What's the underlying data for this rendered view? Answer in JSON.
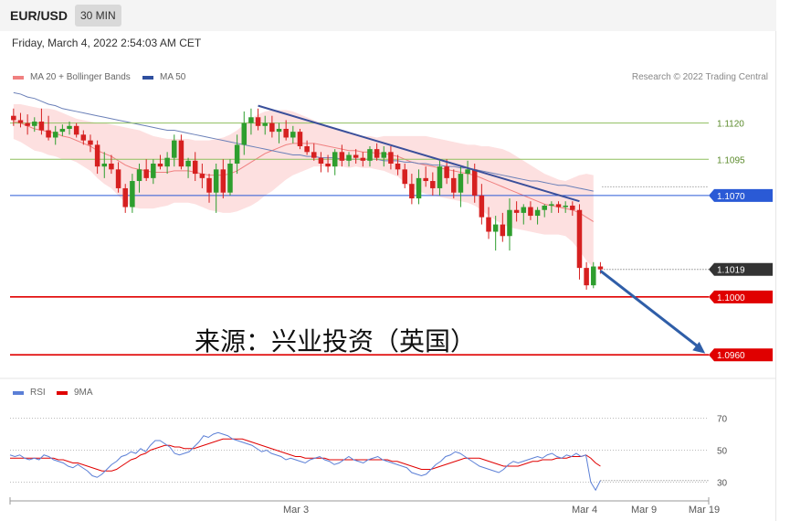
{
  "header": {
    "symbol": "EUR/USD",
    "timeframe": "30 MIN"
  },
  "timestamp": "Friday, March 4, 2022 2:54:03 AM CET",
  "credit": "Research © 2022 Trading Central",
  "watermark": "来源：兴业投资（英国）",
  "legend": {
    "price": [
      {
        "label": "MA 20 + Bollinger Bands",
        "color": "#f08080"
      },
      {
        "label": "MA 50",
        "color": "#2f4f9f"
      }
    ],
    "indicator": [
      {
        "label": "RSI",
        "color": "#5b7fd6"
      },
      {
        "label": "9MA",
        "color": "#e00000"
      }
    ]
  },
  "colors": {
    "up": "#2e9e2e",
    "down": "#d62020",
    "band": "#fde0e0",
    "ma20": "#f08080",
    "ma50": "#6b80b8",
    "trend": "#3a4f9a",
    "arrow": "#2f5ea8",
    "support": "#e00000",
    "resistance": "#8fbf5f",
    "pivot": "#2a5ad6"
  },
  "chart_data": [
    {
      "type": "candlestick",
      "y_range": [
        1.0945,
        1.1145
      ],
      "x_ticks": [
        "Mar 3",
        "Mar 4",
        "Mar 9",
        "Mar 19"
      ],
      "price_levels": [
        {
          "value": 1.112,
          "label": "1.1120",
          "kind": "resistance"
        },
        {
          "value": 1.1095,
          "label": "1.1095",
          "kind": "resistance"
        },
        {
          "value": 1.107,
          "label": "1.1070",
          "kind": "pivot"
        },
        {
          "value": 1.1019,
          "label": "1.1019",
          "kind": "last"
        },
        {
          "value": 1.1,
          "label": "1.1000",
          "kind": "support"
        },
        {
          "value": 1.096,
          "label": "1.0960",
          "kind": "support"
        }
      ],
      "ohlc": [
        [
          1.1125,
          1.113,
          1.1118,
          1.1122
        ],
        [
          1.1122,
          1.1127,
          1.1117,
          1.112
        ],
        [
          1.112,
          1.1126,
          1.1112,
          1.1118
        ],
        [
          1.1118,
          1.1124,
          1.1114,
          1.1121
        ],
        [
          1.1121,
          1.113,
          1.1112,
          1.1115
        ],
        [
          1.1115,
          1.1125,
          1.1108,
          1.111
        ],
        [
          1.111,
          1.1118,
          1.1105,
          1.1114
        ],
        [
          1.1114,
          1.1119,
          1.1111,
          1.1116
        ],
        [
          1.1116,
          1.1121,
          1.1112,
          1.1118
        ],
        [
          1.1118,
          1.112,
          1.111,
          1.1112
        ],
        [
          1.1112,
          1.1115,
          1.1105,
          1.1108
        ],
        [
          1.1108,
          1.1112,
          1.11,
          1.1105
        ],
        [
          1.1105,
          1.1108,
          1.1085,
          1.109
        ],
        [
          1.109,
          1.11,
          1.1082,
          1.1092
        ],
        [
          1.1092,
          1.1098,
          1.1085,
          1.1088
        ],
        [
          1.1088,
          1.1093,
          1.1072,
          1.1075
        ],
        [
          1.1075,
          1.1078,
          1.1058,
          1.1062
        ],
        [
          1.1062,
          1.1085,
          1.1058,
          1.108
        ],
        [
          1.108,
          1.1092,
          1.1072,
          1.1088
        ],
        [
          1.1088,
          1.1095,
          1.108,
          1.1082
        ],
        [
          1.1082,
          1.1095,
          1.1078,
          1.1092
        ],
        [
          1.1092,
          1.1098,
          1.1088,
          1.109
        ],
        [
          1.109,
          1.11,
          1.1085,
          1.1096
        ],
        [
          1.1096,
          1.1112,
          1.109,
          1.1108
        ],
        [
          1.1108,
          1.1112,
          1.1088,
          1.109
        ],
        [
          1.109,
          1.1096,
          1.1082,
          1.1094
        ],
        [
          1.1094,
          1.11,
          1.108,
          1.1085
        ],
        [
          1.1085,
          1.1092,
          1.1075,
          1.1082
        ],
        [
          1.1082,
          1.1085,
          1.1065,
          1.1072
        ],
        [
          1.1072,
          1.1092,
          1.1058,
          1.1088
        ],
        [
          1.1088,
          1.1095,
          1.1068,
          1.1072
        ],
        [
          1.1072,
          1.1095,
          1.107,
          1.1092
        ],
        [
          1.1092,
          1.1112,
          1.1085,
          1.1105
        ],
        [
          1.1105,
          1.1128,
          1.1098,
          1.112
        ],
        [
          1.112,
          1.113,
          1.1112,
          1.1124
        ],
        [
          1.1124,
          1.113,
          1.1115,
          1.1118
        ],
        [
          1.1118,
          1.1125,
          1.1112,
          1.112
        ],
        [
          1.112,
          1.1125,
          1.111,
          1.1114
        ],
        [
          1.1114,
          1.112,
          1.1106,
          1.1116
        ],
        [
          1.1116,
          1.1122,
          1.1108,
          1.111
        ],
        [
          1.111,
          1.1118,
          1.1106,
          1.1114
        ],
        [
          1.1114,
          1.1116,
          1.1102,
          1.1104
        ],
        [
          1.1104,
          1.1108,
          1.1098,
          1.11
        ],
        [
          1.11,
          1.1106,
          1.1094,
          1.1096
        ],
        [
          1.1096,
          1.11,
          1.1086,
          1.1092
        ],
        [
          1.1092,
          1.1098,
          1.1086,
          1.109
        ],
        [
          1.109,
          1.1102,
          1.1084,
          1.11
        ],
        [
          1.11,
          1.1105,
          1.109,
          1.1094
        ],
        [
          1.1094,
          1.11,
          1.109,
          1.1098
        ],
        [
          1.1098,
          1.1102,
          1.1092,
          1.1096
        ],
        [
          1.1096,
          1.11,
          1.109,
          1.1094
        ],
        [
          1.1094,
          1.1104,
          1.109,
          1.1102
        ],
        [
          1.1102,
          1.1106,
          1.1094,
          1.1096
        ],
        [
          1.1096,
          1.1104,
          1.109,
          1.11
        ],
        [
          1.11,
          1.1104,
          1.1088,
          1.1092
        ],
        [
          1.1092,
          1.1098,
          1.1084,
          1.1088
        ],
        [
          1.1088,
          1.1092,
          1.1075,
          1.1078
        ],
        [
          1.1078,
          1.1085,
          1.1064,
          1.1068
        ],
        [
          1.1068,
          1.1088,
          1.1064,
          1.1082
        ],
        [
          1.1082,
          1.109,
          1.1076,
          1.108
        ],
        [
          1.108,
          1.1086,
          1.107,
          1.1075
        ],
        [
          1.1075,
          1.1094,
          1.107,
          1.109
        ],
        [
          1.109,
          1.1095,
          1.1078,
          1.1082
        ],
        [
          1.1082,
          1.1088,
          1.1068,
          1.1072
        ],
        [
          1.1072,
          1.109,
          1.1062,
          1.1085
        ],
        [
          1.1085,
          1.1094,
          1.1078,
          1.1088
        ],
        [
          1.1088,
          1.1092,
          1.1065,
          1.107
        ],
        [
          1.107,
          1.1078,
          1.105,
          1.1055
        ],
        [
          1.1055,
          1.1062,
          1.104,
          1.1045
        ],
        [
          1.1045,
          1.1056,
          1.1032,
          1.105
        ],
        [
          1.105,
          1.1058,
          1.1038,
          1.1042
        ],
        [
          1.1042,
          1.1068,
          1.1032,
          1.106
        ],
        [
          1.106,
          1.1066,
          1.1052,
          1.1058
        ],
        [
          1.1058,
          1.1064,
          1.105,
          1.1062
        ],
        [
          1.1062,
          1.1066,
          1.1053,
          1.1056
        ],
        [
          1.1056,
          1.1062,
          1.105,
          1.106
        ],
        [
          1.106,
          1.1064,
          1.1055,
          1.1063
        ],
        [
          1.1063,
          1.1066,
          1.1058,
          1.1064
        ],
        [
          1.1064,
          1.1066,
          1.1058,
          1.1062
        ],
        [
          1.1062,
          1.1066,
          1.1058,
          1.1063
        ],
        [
          1.1063,
          1.1066,
          1.1056,
          1.106
        ],
        [
          1.106,
          1.1064,
          1.1012,
          1.102
        ],
        [
          1.102,
          1.1024,
          1.1005,
          1.1008
        ],
        [
          1.1008,
          1.1024,
          1.1006,
          1.1021
        ],
        [
          1.1021,
          1.1024,
          1.1016,
          1.1019
        ]
      ],
      "ma20": [
        1.1121,
        1.112,
        1.1118,
        1.1116,
        1.1115,
        1.1114,
        1.1113,
        1.1111,
        1.111,
        1.1108,
        1.1106,
        1.1104,
        1.1101,
        1.1099,
        1.1097,
        1.1094,
        1.1091,
        1.1089,
        1.1088,
        1.1087,
        1.1086,
        1.1086,
        1.1086,
        1.1087,
        1.1087,
        1.1087,
        1.1086,
        1.1085,
        1.1084,
        1.1084,
        1.1084,
        1.1085,
        1.1087,
        1.109,
        1.1093,
        1.1096,
        1.1099,
        1.1101,
        1.1103,
        1.1105,
        1.1106,
        1.1106,
        1.1106,
        1.1106,
        1.1105,
        1.1104,
        1.1103,
        1.1102,
        1.1101,
        1.1101,
        1.11,
        1.11,
        1.1099,
        1.1099,
        1.1098,
        1.1097,
        1.1095,
        1.1093,
        1.1092,
        1.1091,
        1.109,
        1.1089,
        1.1088,
        1.1087,
        1.1086,
        1.1085,
        1.1084,
        1.1082,
        1.108,
        1.1078,
        1.1076,
        1.1074,
        1.1072,
        1.107,
        1.1068,
        1.1066,
        1.1064,
        1.1063,
        1.1062,
        1.1061,
        1.106,
        1.1058,
        1.1055,
        1.1052
      ],
      "bb_width": [
        0.0012,
        0.0013,
        0.0014,
        0.0015,
        0.0015,
        0.0016,
        0.0016,
        0.0016,
        0.0015,
        0.0015,
        0.0016,
        0.0017,
        0.0019,
        0.0021,
        0.0022,
        0.0024,
        0.0026,
        0.0027,
        0.0027,
        0.0026,
        0.0025,
        0.0024,
        0.0023,
        0.0022,
        0.0022,
        0.0022,
        0.0022,
        0.0023,
        0.0024,
        0.0025,
        0.0026,
        0.0027,
        0.0028,
        0.0029,
        0.003,
        0.003,
        0.0029,
        0.0028,
        0.0026,
        0.0024,
        0.0022,
        0.002,
        0.0018,
        0.0016,
        0.0015,
        0.0014,
        0.0013,
        0.0012,
        0.0012,
        0.0011,
        0.0011,
        0.0011,
        0.0011,
        0.0012,
        0.0013,
        0.0014,
        0.0016,
        0.0018,
        0.0019,
        0.002,
        0.002,
        0.002,
        0.002,
        0.002,
        0.002,
        0.002,
        0.0021,
        0.0022,
        0.0024,
        0.0025,
        0.0026,
        0.0026,
        0.0025,
        0.0024,
        0.0023,
        0.0022,
        0.0021,
        0.002,
        0.0019,
        0.0019,
        0.0022,
        0.0026,
        0.003,
        0.0032
      ],
      "ma50": [
        1.1141,
        1.114,
        1.1138,
        1.1137,
        1.1135,
        1.1133,
        1.1132,
        1.113,
        1.1129,
        1.1128,
        1.1127,
        1.1126,
        1.1125,
        1.1124,
        1.1123,
        1.1122,
        1.1121,
        1.112,
        1.1119,
        1.1118,
        1.1117,
        1.1116,
        1.1115,
        1.1115,
        1.1114,
        1.1113,
        1.1112,
        1.1111,
        1.111,
        1.1109,
        1.1108,
        1.1107,
        1.1106,
        1.1105,
        1.1104,
        1.1103,
        1.1102,
        1.1101,
        1.11,
        1.1099,
        1.1098,
        1.1098,
        1.1097,
        1.1097,
        1.1096,
        1.1096,
        1.1096,
        1.1095,
        1.1095,
        1.1095,
        1.1095,
        1.1095,
        1.1095,
        1.1094,
        1.1094,
        1.1094,
        1.1093,
        1.1093,
        1.1092,
        1.1092,
        1.1091,
        1.1091,
        1.109,
        1.109,
        1.1089,
        1.1089,
        1.1088,
        1.1087,
        1.1086,
        1.1085,
        1.1084,
        1.1083,
        1.1082,
        1.1081,
        1.108,
        1.108,
        1.1079,
        1.1078,
        1.1077,
        1.1077,
        1.1076,
        1.1075,
        1.1074,
        1.1073
      ],
      "trendline": {
        "from": {
          "bar": 35,
          "value": 1.1132
        },
        "to": {
          "bar": 81,
          "value": 1.1066
        }
      },
      "forecast_arrow": {
        "from": {
          "bar": 84,
          "value": 1.1018
        },
        "to": {
          "bar": 99,
          "value": 1.0961
        }
      }
    },
    {
      "type": "line",
      "y_range": [
        20,
        80
      ],
      "y_ticks": [
        70,
        50,
        30
      ],
      "series": [
        {
          "name": "RSI",
          "values": [
            47,
            46,
            47,
            45,
            44,
            45,
            44,
            47,
            46,
            44,
            43,
            42,
            40,
            39,
            41,
            39,
            37,
            34,
            33,
            35,
            38,
            41,
            43,
            46,
            47,
            49,
            48,
            51,
            49,
            53,
            56,
            56,
            54,
            52,
            48,
            47,
            48,
            49,
            52,
            55,
            59,
            58,
            60,
            61,
            60,
            59,
            57,
            56,
            55,
            54,
            53,
            51,
            49,
            50,
            48,
            47,
            46,
            44,
            45,
            44,
            43,
            42,
            44,
            45,
            46,
            44,
            43,
            41,
            42,
            44,
            46,
            44,
            43,
            42,
            44,
            45,
            46,
            44,
            43,
            42,
            41,
            40,
            39,
            36,
            35,
            34,
            35,
            38,
            41,
            43,
            46,
            47,
            49,
            48,
            46,
            44,
            42,
            40,
            39,
            38,
            37,
            36,
            38,
            41,
            43,
            42,
            43,
            44,
            45,
            46,
            45,
            47,
            48,
            46,
            45,
            47,
            46,
            48,
            46,
            47,
            30,
            25,
            31
          ]
        },
        {
          "name": "9MA",
          "values": [
            45,
            45,
            45,
            45,
            45,
            45,
            45,
            45,
            45,
            45,
            44,
            44,
            43,
            42,
            42,
            41,
            40,
            39,
            38,
            37,
            37,
            37,
            38,
            40,
            42,
            44,
            45,
            47,
            48,
            50,
            51,
            52,
            53,
            53,
            52,
            52,
            51,
            51,
            51,
            52,
            53,
            54,
            55,
            56,
            57,
            57,
            57,
            57,
            57,
            56,
            55,
            54,
            53,
            52,
            51,
            50,
            49,
            48,
            47,
            46,
            46,
            45,
            45,
            45,
            45,
            45,
            44,
            44,
            44,
            44,
            44,
            44,
            44,
            44,
            44,
            44,
            44,
            44,
            44,
            43,
            43,
            42,
            41,
            40,
            39,
            38,
            38,
            38,
            39,
            40,
            41,
            42,
            43,
            44,
            45,
            45,
            45,
            45,
            44,
            43,
            42,
            41,
            40,
            40,
            40,
            40,
            41,
            42,
            43,
            43,
            44,
            44,
            44,
            45,
            45,
            45,
            46,
            46,
            46,
            47,
            45,
            42,
            40
          ]
        }
      ]
    }
  ]
}
